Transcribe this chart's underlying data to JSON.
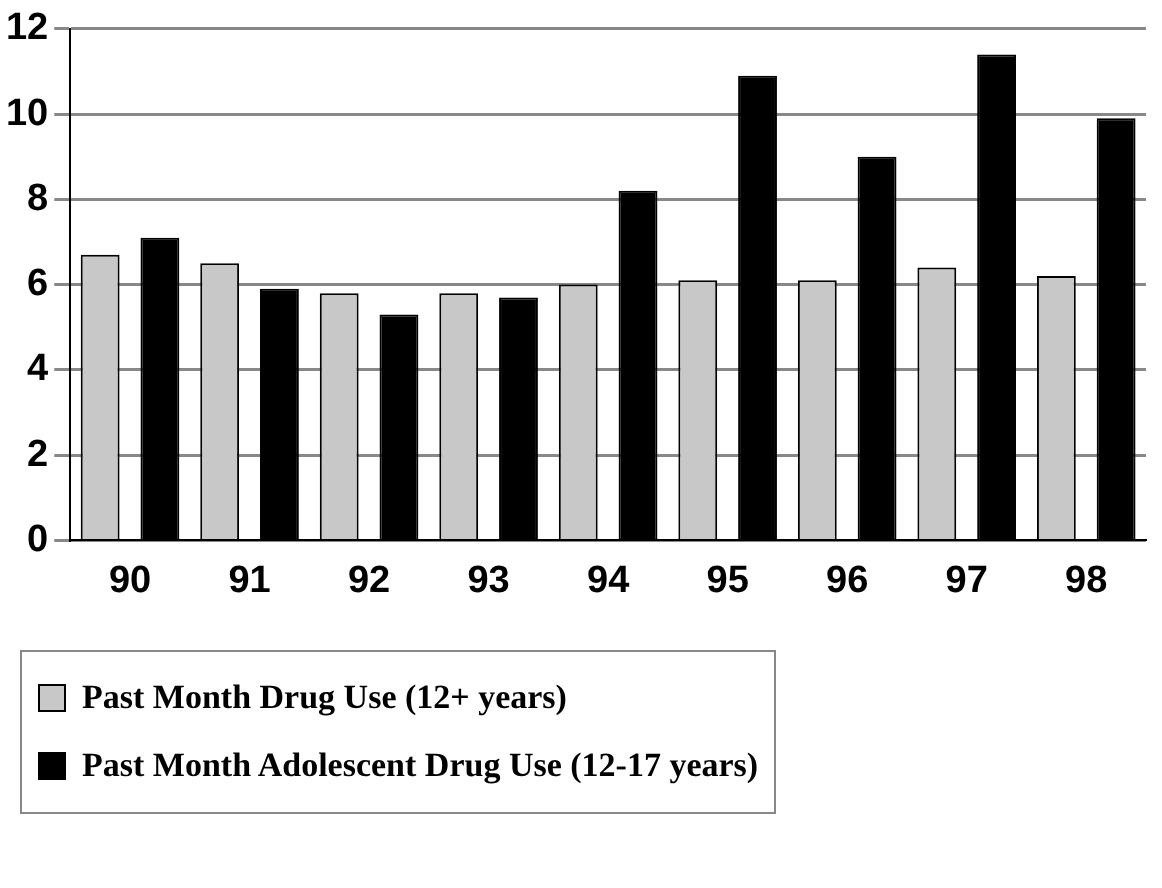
{
  "chart_data": {
    "type": "bar",
    "categories": [
      "90",
      "91",
      "92",
      "93",
      "94",
      "95",
      "96",
      "97",
      "98"
    ],
    "series": [
      {
        "name": "Past Month Drug Use (12+ years)",
        "color": "#c8c8c8",
        "values": [
          6.7,
          6.5,
          5.8,
          5.8,
          6.0,
          6.1,
          6.1,
          6.4,
          6.2
        ]
      },
      {
        "name": "Past Month Adolescent Drug Use (12-17 years)",
        "color": "#000000",
        "values": [
          7.1,
          5.9,
          5.3,
          5.7,
          8.2,
          10.9,
          9.0,
          11.4,
          9.9
        ]
      }
    ],
    "ylim": [
      0,
      12
    ],
    "yticks": [
      0,
      2,
      4,
      6,
      8,
      10,
      12
    ],
    "grid": "y",
    "legend": "bottom left"
  }
}
